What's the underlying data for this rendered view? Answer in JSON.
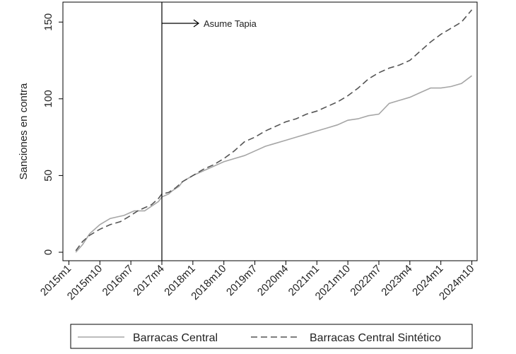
{
  "chart_data": {
    "type": "line",
    "title": "",
    "xlabel": "",
    "ylabel": "Sanciones en contra",
    "ylim": [
      0,
      163
    ],
    "yticks": [
      0,
      50,
      100,
      150
    ],
    "x_tick_labels": [
      "2015m1",
      "2015m10",
      "2016m7",
      "2017m4",
      "2018m1",
      "2018m10",
      "2019m7",
      "2020m4",
      "2021m1",
      "2021m10",
      "2022m7",
      "2023m4",
      "2024m1",
      "2024m10"
    ],
    "x_range": [
      "2015m1",
      "2024m10"
    ],
    "grid": false,
    "legend_position": "bottom",
    "annotation": {
      "text": "Asume Tapia",
      "x": "2017m4"
    },
    "series": [
      {
        "name": "Barracas Central",
        "style": "solid",
        "color": "#a6a6a6",
        "points": [
          [
            "2015m3",
            0
          ],
          [
            "2015m5",
            5
          ],
          [
            "2015m7",
            12
          ],
          [
            "2015m10",
            18
          ],
          [
            "2016m1",
            22
          ],
          [
            "2016m3",
            23
          ],
          [
            "2016m5",
            24
          ],
          [
            "2016m7",
            26
          ],
          [
            "2016m8",
            27
          ],
          [
            "2016m11",
            27
          ],
          [
            "2017m1",
            30
          ],
          [
            "2017m3",
            33
          ],
          [
            "2017m4",
            36
          ],
          [
            "2017m6",
            38
          ],
          [
            "2017m7",
            40
          ],
          [
            "2017m9",
            43
          ],
          [
            "2017m10",
            46
          ],
          [
            "2018m1",
            50
          ],
          [
            "2018m4",
            53
          ],
          [
            "2018m7",
            56
          ],
          [
            "2018m10",
            59
          ],
          [
            "2019m1",
            61
          ],
          [
            "2019m4",
            63
          ],
          [
            "2019m7",
            66
          ],
          [
            "2019m10",
            69
          ],
          [
            "2020m1",
            71
          ],
          [
            "2020m4",
            73
          ],
          [
            "2020m7",
            75
          ],
          [
            "2020m10",
            77
          ],
          [
            "2021m1",
            79
          ],
          [
            "2021m4",
            81
          ],
          [
            "2021m7",
            83
          ],
          [
            "2021m10",
            86
          ],
          [
            "2022m1",
            87
          ],
          [
            "2022m4",
            89
          ],
          [
            "2022m7",
            90
          ],
          [
            "2022m10",
            97
          ],
          [
            "2023m1",
            99
          ],
          [
            "2023m4",
            101
          ],
          [
            "2023m7",
            104
          ],
          [
            "2023m10",
            107
          ],
          [
            "2024m1",
            107
          ],
          [
            "2024m4",
            108
          ],
          [
            "2024m7",
            110
          ],
          [
            "2024m10",
            115
          ]
        ]
      },
      {
        "name": "Barracas Central Sintético",
        "style": "dashed",
        "color": "#555555",
        "points": [
          [
            "2015m3",
            1
          ],
          [
            "2015m5",
            7
          ],
          [
            "2015m7",
            11
          ],
          [
            "2015m10",
            15
          ],
          [
            "2016m1",
            18
          ],
          [
            "2016m4",
            20
          ],
          [
            "2016m7",
            24
          ],
          [
            "2016m9",
            27
          ],
          [
            "2016m11",
            29
          ],
          [
            "2017m1",
            31
          ],
          [
            "2017m3",
            35
          ],
          [
            "2017m4",
            38
          ],
          [
            "2017m6",
            39
          ],
          [
            "2017m8",
            42
          ],
          [
            "2017m10",
            46
          ],
          [
            "2018m1",
            50
          ],
          [
            "2018m4",
            54
          ],
          [
            "2018m7",
            57
          ],
          [
            "2018m10",
            61
          ],
          [
            "2019m1",
            66
          ],
          [
            "2019m4",
            72
          ],
          [
            "2019m7",
            75
          ],
          [
            "2019m10",
            79
          ],
          [
            "2020m1",
            82
          ],
          [
            "2020m4",
            85
          ],
          [
            "2020m7",
            87
          ],
          [
            "2020m10",
            90
          ],
          [
            "2021m1",
            92
          ],
          [
            "2021m4",
            95
          ],
          [
            "2021m7",
            98
          ],
          [
            "2021m10",
            102
          ],
          [
            "2022m1",
            107
          ],
          [
            "2022m4",
            113
          ],
          [
            "2022m7",
            117
          ],
          [
            "2022m10",
            120
          ],
          [
            "2023m1",
            122
          ],
          [
            "2023m4",
            125
          ],
          [
            "2023m7",
            131
          ],
          [
            "2023m10",
            137
          ],
          [
            "2024m1",
            142
          ],
          [
            "2024m4",
            146
          ],
          [
            "2024m7",
            150
          ],
          [
            "2024m10",
            158
          ]
        ]
      }
    ]
  }
}
